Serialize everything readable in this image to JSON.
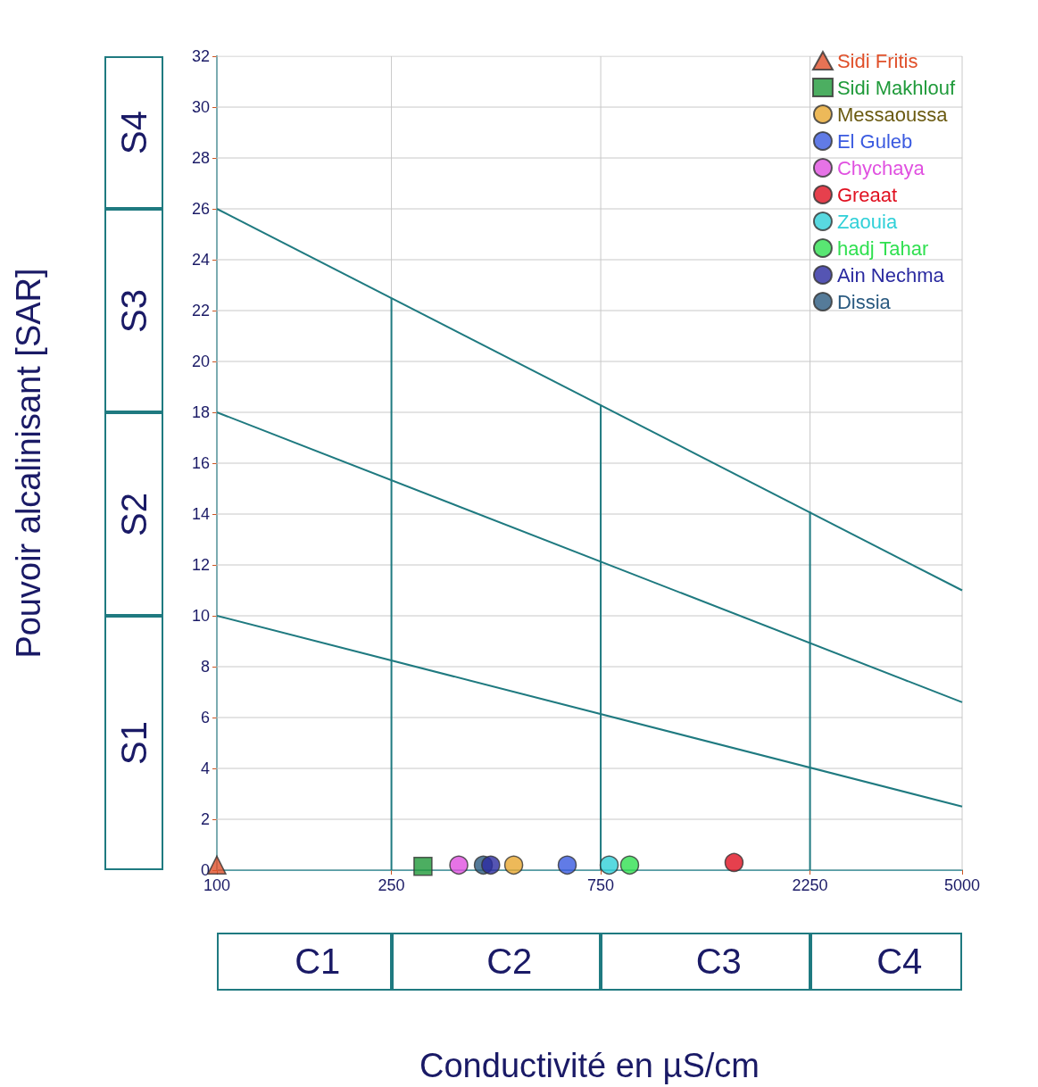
{
  "chart_data": {
    "type": "scatter",
    "xlabel": "Conductivité en µS/cm",
    "ylabel": "Pouvoir alcalinisant [SAR]",
    "log": "x",
    "xlim": [
      100,
      5000
    ],
    "xticks": [
      100,
      250,
      750,
      2250,
      5000
    ],
    "ylim": [
      0,
      32
    ],
    "yticks": [
      0,
      2,
      4,
      6,
      8,
      10,
      12,
      14,
      16,
      18,
      20,
      22,
      24,
      26,
      28,
      30,
      32
    ],
    "grid": true,
    "legend": "top right",
    "series": [
      {
        "name": "Sidi Fritis",
        "color": "#e0502a",
        "marker": "triangle",
        "x": [
          100
        ],
        "values": [
          0.2
        ]
      },
      {
        "name": "Sidi Makhlouf",
        "color": "#1f9a3a",
        "marker": "square",
        "x": [
          295
        ],
        "values": [
          0.15
        ]
      },
      {
        "name": "Messaoussa",
        "color": "#e8a830",
        "marker": "circle",
        "x": [
          475
        ],
        "values": [
          0.2
        ]
      },
      {
        "name": "El Guleb",
        "color": "#3a5ae0",
        "marker": "circle",
        "x": [
          629
        ],
        "values": [
          0.2
        ]
      },
      {
        "name": "Chychaya",
        "color": "#e050e0",
        "marker": "circle",
        "x": [
          356
        ],
        "values": [
          0.2
        ]
      },
      {
        "name": "Greaat",
        "color": "#e01020",
        "marker": "circle",
        "x": [
          1510
        ],
        "values": [
          0.3
        ]
      },
      {
        "name": "Zaouia",
        "color": "#30d0d8",
        "marker": "circle",
        "x": [
          784
        ],
        "values": [
          0.2
        ]
      },
      {
        "name": "hadj Tahar",
        "color": "#30e050",
        "marker": "circle",
        "x": [
          873
        ],
        "values": [
          0.2
        ]
      },
      {
        "name": "Ain Nechma",
        "color": "#2a2aa0",
        "marker": "circle",
        "x": [
          421
        ],
        "values": [
          0.2
        ]
      },
      {
        "name": "Dissia",
        "color": "#2a5a80",
        "marker": "circle",
        "x": [
          405
        ],
        "values": [
          0.2
        ]
      },
      {
        "type": "line",
        "color": "#1f7a80",
        "x": [
          100,
          5000
        ],
        "values": [
          26,
          11
        ]
      },
      {
        "type": "line",
        "color": "#1f7a80",
        "x": [
          100,
          5000
        ],
        "values": [
          18,
          6.6
        ]
      },
      {
        "type": "line",
        "color": "#1f7a80",
        "x": [
          100,
          5000
        ],
        "values": [
          10,
          2.5
        ]
      },
      {
        "type": "line",
        "color": "#1f7a80",
        "x": [
          250,
          250
        ],
        "values": [
          0,
          22.5
        ]
      },
      {
        "type": "line",
        "color": "#1f7a80",
        "x": [
          750,
          750
        ],
        "values": [
          0,
          18.3
        ]
      },
      {
        "type": "line",
        "color": "#1f7a80",
        "x": [
          2250,
          2250
        ],
        "values": [
          0,
          14.1
        ]
      }
    ],
    "annotations": [
      "S4",
      "S3",
      "S2",
      "S1",
      "C1",
      "C2",
      "C3",
      "C4"
    ]
  }
}
